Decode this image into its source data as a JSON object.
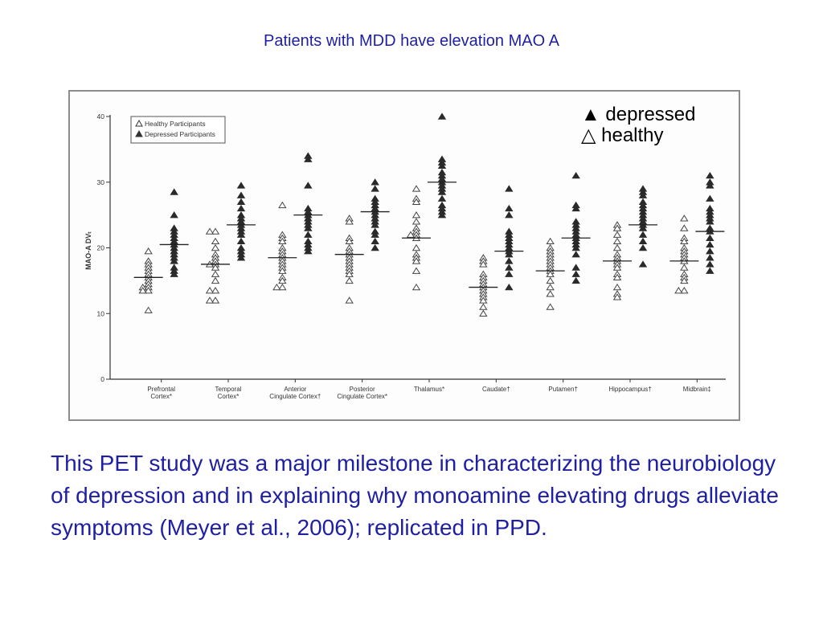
{
  "slide": {
    "title": "Patients with MDD have elevation MAO A",
    "body": "This PET study was a major milestone in characterizing the neurobiology of depression and in explaining why monoamine elevating drugs alleviate  symptoms (Meyer et al., 2006); replicated in PPD."
  },
  "annotations": {
    "depressed": "▲ depressed",
    "healthy": "△ healthy"
  },
  "colors": {
    "text": "#1f1fa3",
    "marker_fill": "#9a9a9a",
    "frame": "#8c8c8c"
  },
  "chart_data": {
    "type": "scatter",
    "ylabel": "MAO-A DVₜ",
    "ylim": [
      0,
      40
    ],
    "yticks": [
      0,
      10,
      20,
      30,
      40
    ],
    "legend": {
      "position": "top-left",
      "entries": [
        "Healthy Participants",
        "Depressed Participants"
      ]
    },
    "categories": [
      {
        "label": [
          "Prefrontal",
          "Cortex*"
        ]
      },
      {
        "label": [
          "Temporal",
          "Cortex*"
        ]
      },
      {
        "label": [
          "Anterior",
          "Cingulate Cortex†"
        ]
      },
      {
        "label": [
          "Posterior",
          "Cingulate Cortex*"
        ]
      },
      {
        "label": [
          "Thalamus*"
        ]
      },
      {
        "label": [
          "Caudate†"
        ]
      },
      {
        "label": [
          "Putamen†"
        ]
      },
      {
        "label": [
          "Hippocampus†"
        ]
      },
      {
        "label": [
          "Midbrain‡"
        ]
      }
    ],
    "series": [
      {
        "name": "Healthy Participants",
        "marker": "open-triangle",
        "means": [
          15.5,
          17.5,
          18.5,
          19,
          21.5,
          14,
          16.5,
          18,
          18
        ],
        "values": [
          [
            19.5,
            18,
            17.5,
            17,
            16.5,
            16,
            15.5,
            15,
            14.5,
            14,
            14,
            13.5,
            13.5,
            10.5
          ],
          [
            22.5,
            22.5,
            21,
            20,
            19,
            18.5,
            18,
            17.5,
            17.5,
            17,
            16,
            15,
            13.5,
            13.5,
            12,
            12
          ],
          [
            26.5,
            22,
            21.5,
            21,
            20,
            19.5,
            19,
            18.5,
            18,
            17.5,
            17,
            16.5,
            15.5,
            15,
            14,
            14
          ],
          [
            24.5,
            24,
            21.5,
            21,
            20,
            19.5,
            19,
            18.5,
            18,
            17.5,
            17,
            16.5,
            16,
            15,
            12
          ],
          [
            29,
            27.5,
            27,
            25,
            24,
            23,
            22.5,
            22,
            22,
            21.5,
            20,
            19,
            18.5,
            18,
            16.5,
            14
          ],
          [
            18.5,
            18,
            17.5,
            16,
            15.5,
            15,
            14.5,
            14,
            13.5,
            13,
            12.5,
            12,
            11,
            10
          ],
          [
            21,
            20,
            19.5,
            19,
            18.5,
            18,
            17.5,
            17,
            16.5,
            16,
            15,
            14,
            13,
            11
          ],
          [
            23.5,
            23,
            22,
            21,
            20,
            19,
            18.5,
            18,
            17.5,
            17,
            16,
            15.5,
            14,
            13,
            12.5
          ],
          [
            24.5,
            23,
            21.5,
            21,
            20,
            19.5,
            19,
            18.5,
            18,
            17,
            16,
            15.5,
            15,
            13.5,
            13.5
          ]
        ]
      },
      {
        "name": "Depressed Participants",
        "marker": "filled-triangle",
        "means": [
          20.5,
          23.5,
          25,
          25.5,
          30,
          19.5,
          21.5,
          23.5,
          22.5
        ],
        "values": [
          [
            28.5,
            25,
            23,
            22.5,
            22,
            21.5,
            21,
            20.5,
            20,
            19.5,
            19,
            18.5,
            18,
            17,
            16.5,
            16
          ],
          [
            29.5,
            28,
            27,
            26,
            25,
            24.5,
            24,
            23.5,
            23,
            22.5,
            22,
            21,
            20,
            19.5,
            19,
            18.5
          ],
          [
            34,
            33.5,
            29.5,
            26,
            25.5,
            25,
            24.5,
            24,
            23.5,
            23,
            22,
            21,
            20.5,
            20,
            19.5
          ],
          [
            30,
            29,
            27.5,
            27,
            26.5,
            26,
            25.5,
            25,
            24.5,
            24,
            23.5,
            22.5,
            22,
            21,
            20
          ],
          [
            40,
            33.5,
            33,
            32.5,
            31.5,
            31,
            30.5,
            30,
            29.5,
            29,
            28.5,
            27.5,
            26.5,
            26,
            25.5,
            25
          ],
          [
            29,
            26,
            25,
            22.5,
            22,
            21.5,
            21,
            20.5,
            20,
            19.5,
            19,
            18,
            17,
            16,
            14
          ],
          [
            31,
            26.5,
            26,
            24,
            23.5,
            23,
            22.5,
            22,
            21.5,
            21,
            20.5,
            20,
            19,
            17,
            16,
            15
          ],
          [
            29,
            28.5,
            28,
            27,
            26.5,
            26,
            25.5,
            25,
            24.5,
            24,
            23.5,
            23,
            22,
            21,
            20,
            17.5
          ],
          [
            31,
            30,
            29.5,
            27.5,
            26,
            25.5,
            25,
            24.5,
            24,
            23,
            22.5,
            21.5,
            20.5,
            19.5,
            18.5,
            17.5,
            16.5
          ]
        ]
      }
    ]
  }
}
